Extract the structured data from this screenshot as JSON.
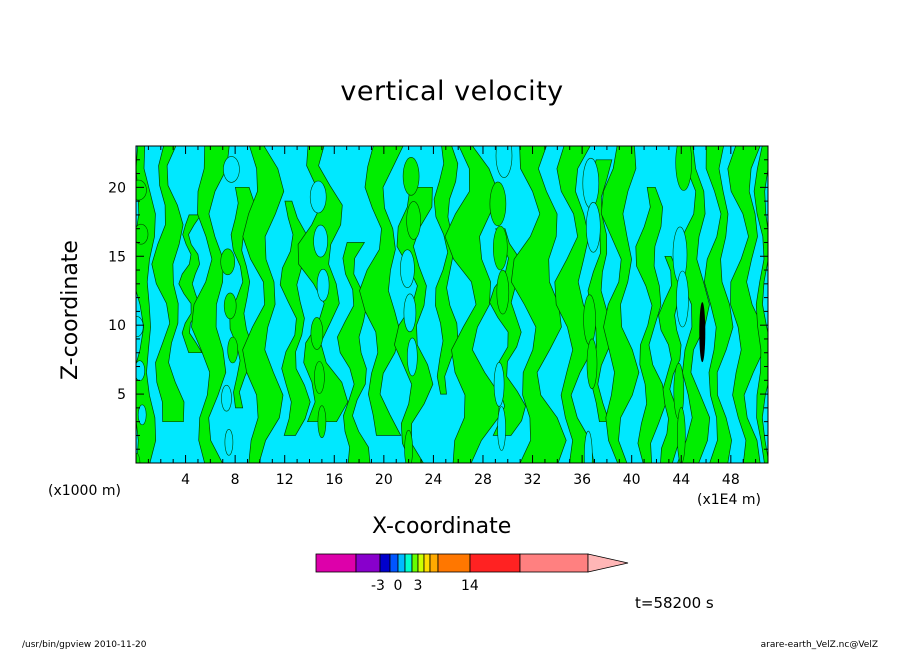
{
  "chart_data": {
    "type": "heatmap",
    "title": "vertical velocity",
    "xlabel": "X-coordinate",
    "ylabel": "Z-coordinate",
    "x_unit": "(x1E4 m)",
    "y_unit": "(x1000 m)",
    "x_ticks": [
      "4",
      "8",
      "12",
      "16",
      "20",
      "24",
      "28",
      "32",
      "36",
      "40",
      "44",
      "48"
    ],
    "y_ticks": [
      "5",
      "10",
      "15",
      "20"
    ],
    "xlim": [
      0,
      51
    ],
    "ylim": [
      0,
      23
    ],
    "grid": false,
    "colorbar": {
      "tick_labels": [
        "-3",
        "0",
        "3",
        "14"
      ],
      "colors": [
        "#dd00aa",
        "#8800cc",
        "#0000cc",
        "#0055ff",
        "#00bbff",
        "#00ffcc",
        "#66ff00",
        "#ccff00",
        "#ffdd00",
        "#ffaa00",
        "#ff7700",
        "#ff2222",
        "#ff8080",
        "#ffb6b6"
      ]
    },
    "fill_colors": {
      "negative": "#00e8ff",
      "positive": "#00ee00",
      "strong_updraft": "#000000"
    },
    "time_label": "t=58200 s"
  },
  "footer": {
    "left": "/usr/bin/gpview   2010-11-20",
    "right": "arare-earth_VelZ.nc@VelZ"
  }
}
